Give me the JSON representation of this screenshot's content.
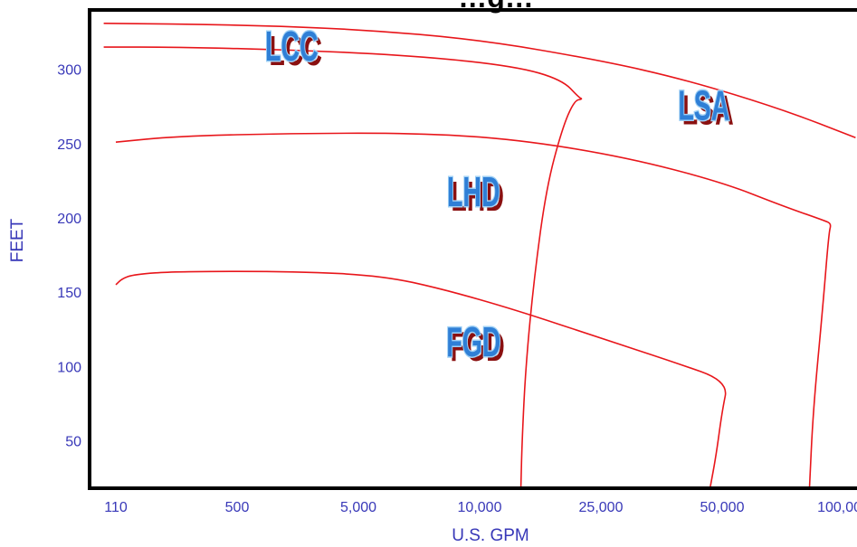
{
  "chart_data": {
    "type": "line",
    "title": "…g…",
    "xlabel": "U.S. GPM",
    "ylabel": "FEET",
    "x_ticks": [
      "110",
      "500",
      "5,000",
      "10,000",
      "25,000",
      "50,000",
      "100,000"
    ],
    "y_ticks": [
      50,
      100,
      150,
      200,
      250,
      300
    ],
    "ylim": [
      18,
      340
    ],
    "x_scale": "categorical-log",
    "grid": false,
    "colors": {
      "curve": "#e8161b",
      "axis_text": "#3838b8",
      "frame": "#000000",
      "label_fill": "#2f7fd6",
      "label_outline": "#9fd0f5",
      "label_shadow": "#8a1010"
    },
    "regions": [
      {
        "name": "LCC",
        "x": 1.45,
        "y": 306
      },
      {
        "name": "LSA",
        "x": 4.85,
        "y": 266
      },
      {
        "name": "LHD",
        "x": 2.95,
        "y": 208
      },
      {
        "name": "FGD",
        "x": 2.95,
        "y": 107
      }
    ],
    "series": [
      {
        "points": [
          [
            -0.1,
            331
          ],
          [
            1.0,
            330
          ],
          [
            2.0,
            327
          ],
          [
            3.0,
            320
          ],
          [
            4.0,
            306
          ],
          [
            4.7,
            293
          ],
          [
            5.5,
            273
          ],
          [
            6.1,
            254
          ]
        ]
      },
      {
        "points": [
          [
            -0.1,
            315
          ],
          [
            0.5,
            315
          ],
          [
            1.5,
            313
          ],
          [
            2.5,
            309
          ],
          [
            3.3,
            302
          ],
          [
            3.68,
            293
          ],
          [
            3.82,
            281
          ],
          [
            3.85,
            280
          ],
          [
            3.78,
            279
          ],
          [
            3.68,
            260
          ],
          [
            3.55,
            220
          ],
          [
            3.45,
            160
          ],
          [
            3.38,
            100
          ],
          [
            3.35,
            50
          ],
          [
            3.34,
            18
          ]
        ]
      },
      {
        "points": [
          [
            0.0,
            251
          ],
          [
            0.5,
            255
          ],
          [
            1.5,
            257
          ],
          [
            2.5,
            257
          ],
          [
            3.3,
            253
          ],
          [
            4.2,
            241
          ],
          [
            5.0,
            224
          ],
          [
            5.5,
            208
          ],
          [
            5.85,
            198
          ],
          [
            5.9,
            196
          ],
          [
            5.88,
            190
          ],
          [
            5.83,
            140
          ],
          [
            5.75,
            70
          ],
          [
            5.72,
            18
          ]
        ]
      },
      {
        "points": [
          [
            0.0,
            155
          ],
          [
            0.05,
            159
          ],
          [
            0.15,
            162
          ],
          [
            0.5,
            164
          ],
          [
            1.5,
            164
          ],
          [
            2.2,
            161
          ],
          [
            2.7,
            152
          ],
          [
            3.3,
            138
          ],
          [
            4.0,
            119
          ],
          [
            4.6,
            103
          ],
          [
            5.05,
            90
          ],
          [
            5.0,
            70
          ],
          [
            4.95,
            40
          ],
          [
            4.9,
            18
          ]
        ]
      }
    ]
  }
}
